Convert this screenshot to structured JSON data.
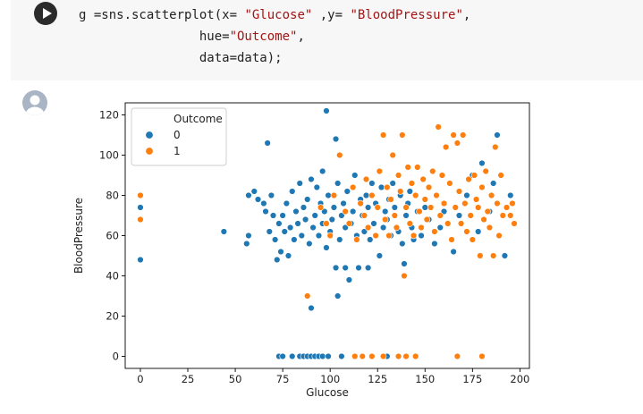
{
  "code": {
    "lines": [
      [
        {
          "t": "g =sns.scatterplot(x= "
        },
        {
          "t": "\"Glucose\"",
          "s": 1
        },
        {
          "t": " ,y= "
        },
        {
          "t": "\"BloodPressure\"",
          "s": 1
        },
        {
          "t": ","
        }
      ],
      [
        {
          "t": "                hue="
        },
        {
          "t": "\"Outcome\"",
          "s": 1
        },
        {
          "t": ","
        }
      ],
      [
        {
          "t": "                data=data);"
        }
      ]
    ]
  },
  "icons": {
    "run": "play-icon",
    "avatar": "user-avatar-icon"
  },
  "chart_data": {
    "type": "scatter",
    "xlabel": "Glucose",
    "ylabel": "BloodPressure",
    "xlim": [
      -8,
      205
    ],
    "ylim": [
      -6,
      126
    ],
    "xticks": [
      0,
      25,
      50,
      75,
      100,
      125,
      150,
      175,
      200
    ],
    "yticks": [
      0,
      20,
      40,
      60,
      80,
      100,
      120
    ],
    "grid": false,
    "legend": {
      "title": "Outcome",
      "position": "top-left"
    },
    "series": [
      {
        "name": "0",
        "color": "#1f77b4",
        "points": [
          [
            0,
            74
          ],
          [
            0,
            48
          ],
          [
            44,
            62
          ],
          [
            56,
            56
          ],
          [
            57,
            60
          ],
          [
            57,
            80
          ],
          [
            60,
            82
          ],
          [
            62,
            78
          ],
          [
            65,
            76
          ],
          [
            66,
            72
          ],
          [
            67,
            106
          ],
          [
            68,
            62
          ],
          [
            69,
            80
          ],
          [
            70,
            70
          ],
          [
            71,
            58
          ],
          [
            72,
            48
          ],
          [
            73,
            66
          ],
          [
            74,
            52
          ],
          [
            75,
            70
          ],
          [
            76,
            62
          ],
          [
            77,
            76
          ],
          [
            78,
            50
          ],
          [
            79,
            64
          ],
          [
            80,
            82
          ],
          [
            81,
            58
          ],
          [
            82,
            72
          ],
          [
            83,
            66
          ],
          [
            84,
            86
          ],
          [
            85,
            60
          ],
          [
            86,
            74
          ],
          [
            87,
            68
          ],
          [
            88,
            78
          ],
          [
            89,
            56
          ],
          [
            90,
            88
          ],
          [
            90,
            24
          ],
          [
            91,
            64
          ],
          [
            92,
            70
          ],
          [
            93,
            84
          ],
          [
            94,
            60
          ],
          [
            95,
            76
          ],
          [
            96,
            92
          ],
          [
            96,
            66
          ],
          [
            97,
            72
          ],
          [
            98,
            54
          ],
          [
            98,
            122
          ],
          [
            99,
            80
          ],
          [
            100,
            62
          ],
          [
            101,
            68
          ],
          [
            102,
            74
          ],
          [
            103,
            44
          ],
          [
            103,
            108
          ],
          [
            104,
            30
          ],
          [
            104,
            86
          ],
          [
            105,
            58
          ],
          [
            106,
            70
          ],
          [
            107,
            76
          ],
          [
            108,
            64
          ],
          [
            108,
            44
          ],
          [
            109,
            82
          ],
          [
            110,
            38
          ],
          [
            111,
            66
          ],
          [
            112,
            72
          ],
          [
            113,
            90
          ],
          [
            114,
            60
          ],
          [
            115,
            44
          ],
          [
            116,
            78
          ],
          [
            117,
            70
          ],
          [
            118,
            62
          ],
          [
            119,
            80
          ],
          [
            120,
            74
          ],
          [
            120,
            44
          ],
          [
            121,
            58
          ],
          [
            122,
            86
          ],
          [
            123,
            66
          ],
          [
            124,
            76
          ],
          [
            126,
            50
          ],
          [
            127,
            84
          ],
          [
            128,
            64
          ],
          [
            129,
            72
          ],
          [
            130,
            68
          ],
          [
            131,
            78
          ],
          [
            132,
            60
          ],
          [
            133,
            86
          ],
          [
            134,
            74
          ],
          [
            136,
            62
          ],
          [
            137,
            80
          ],
          [
            138,
            56
          ],
          [
            139,
            46
          ],
          [
            140,
            70
          ],
          [
            141,
            76
          ],
          [
            142,
            82
          ],
          [
            143,
            64
          ],
          [
            144,
            58
          ],
          [
            146,
            72
          ],
          [
            148,
            60
          ],
          [
            150,
            74
          ],
          [
            152,
            68
          ],
          [
            155,
            56
          ],
          [
            158,
            64
          ],
          [
            160,
            72
          ],
          [
            165,
            52
          ],
          [
            168,
            70
          ],
          [
            172,
            80
          ],
          [
            175,
            90
          ],
          [
            178,
            62
          ],
          [
            180,
            96
          ],
          [
            184,
            72
          ],
          [
            186,
            86
          ],
          [
            188,
            110
          ],
          [
            192,
            50
          ],
          [
            195,
            80
          ],
          [
            73,
            0
          ],
          [
            75,
            0
          ],
          [
            80,
            0
          ],
          [
            84,
            0
          ],
          [
            86,
            0
          ],
          [
            88,
            0
          ],
          [
            90,
            0
          ],
          [
            92,
            0
          ],
          [
            94,
            0
          ],
          [
            96,
            0
          ],
          [
            99,
            0
          ],
          [
            106,
            0
          ],
          [
            130,
            0
          ]
        ]
      },
      {
        "name": "1",
        "color": "#ff7f0e",
        "points": [
          [
            0,
            80
          ],
          [
            0,
            68
          ],
          [
            88,
            30
          ],
          [
            95,
            74
          ],
          [
            98,
            66
          ],
          [
            100,
            60
          ],
          [
            102,
            80
          ],
          [
            105,
            100
          ],
          [
            108,
            72
          ],
          [
            110,
            66
          ],
          [
            112,
            84
          ],
          [
            114,
            58
          ],
          [
            116,
            76
          ],
          [
            118,
            70
          ],
          [
            119,
            88
          ],
          [
            120,
            64
          ],
          [
            122,
            80
          ],
          [
            124,
            60
          ],
          [
            125,
            74
          ],
          [
            126,
            92
          ],
          [
            128,
            110
          ],
          [
            129,
            68
          ],
          [
            130,
            84
          ],
          [
            131,
            60
          ],
          [
            132,
            78
          ],
          [
            133,
            100
          ],
          [
            134,
            70
          ],
          [
            135,
            64
          ],
          [
            136,
            90
          ],
          [
            137,
            82
          ],
          [
            138,
            110
          ],
          [
            139,
            40
          ],
          [
            140,
            74
          ],
          [
            141,
            94
          ],
          [
            142,
            66
          ],
          [
            143,
            86
          ],
          [
            144,
            60
          ],
          [
            145,
            80
          ],
          [
            146,
            94
          ],
          [
            147,
            72
          ],
          [
            148,
            64
          ],
          [
            149,
            88
          ],
          [
            150,
            78
          ],
          [
            151,
            68
          ],
          [
            152,
            84
          ],
          [
            153,
            74
          ],
          [
            154,
            92
          ],
          [
            155,
            62
          ],
          [
            156,
            80
          ],
          [
            157,
            114
          ],
          [
            158,
            70
          ],
          [
            159,
            90
          ],
          [
            160,
            76
          ],
          [
            161,
            104
          ],
          [
            162,
            66
          ],
          [
            163,
            86
          ],
          [
            164,
            58
          ],
          [
            165,
            110
          ],
          [
            166,
            74
          ],
          [
            167,
            106
          ],
          [
            168,
            82
          ],
          [
            169,
            66
          ],
          [
            170,
            110
          ],
          [
            171,
            76
          ],
          [
            172,
            62
          ],
          [
            173,
            88
          ],
          [
            174,
            70
          ],
          [
            175,
            58
          ],
          [
            176,
            90
          ],
          [
            177,
            78
          ],
          [
            178,
            74
          ],
          [
            179,
            50
          ],
          [
            180,
            84
          ],
          [
            181,
            68
          ],
          [
            182,
            92
          ],
          [
            183,
            72
          ],
          [
            184,
            64
          ],
          [
            185,
            80
          ],
          [
            186,
            50
          ],
          [
            187,
            104
          ],
          [
            188,
            76
          ],
          [
            189,
            60
          ],
          [
            190,
            90
          ],
          [
            191,
            70
          ],
          [
            193,
            74
          ],
          [
            195,
            70
          ],
          [
            196,
            76
          ],
          [
            197,
            66
          ],
          [
            113,
            0
          ],
          [
            117,
            0
          ],
          [
            122,
            0
          ],
          [
            128,
            0
          ],
          [
            136,
            0
          ],
          [
            140,
            0
          ],
          [
            145,
            0
          ],
          [
            167,
            0
          ],
          [
            180,
            0
          ]
        ]
      }
    ]
  }
}
